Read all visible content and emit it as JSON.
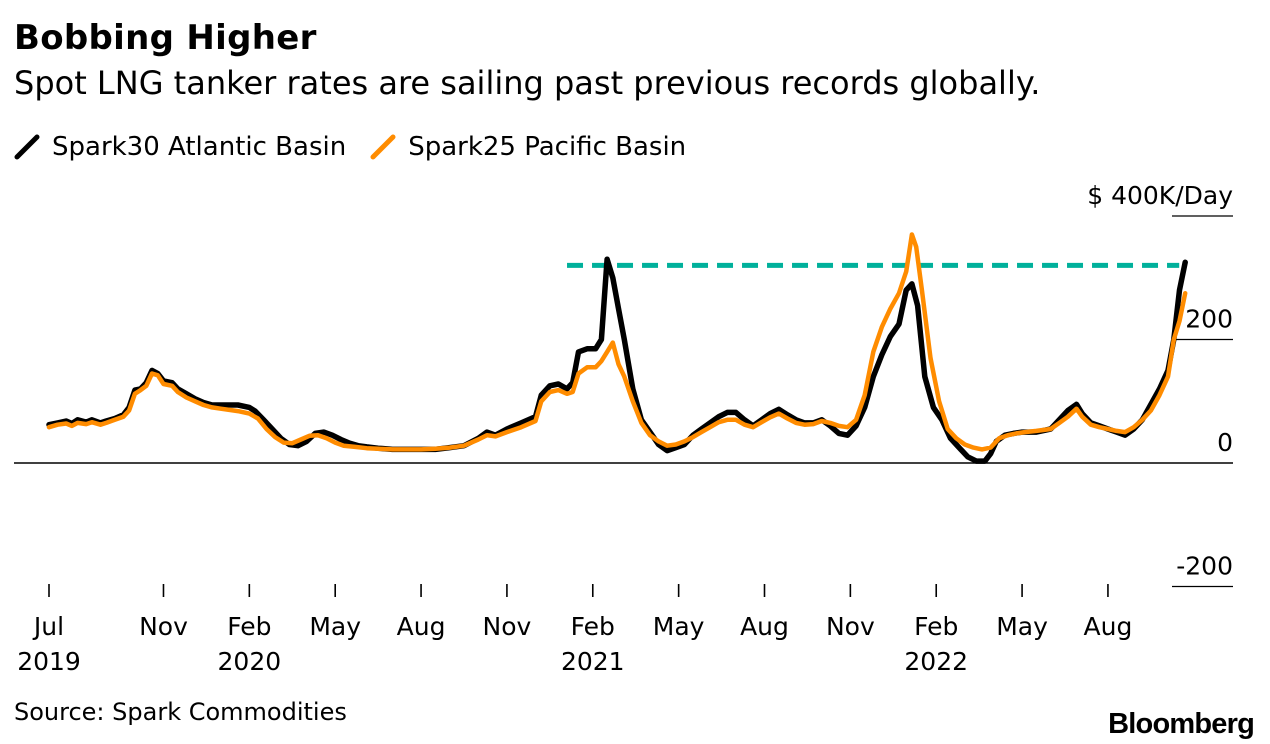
{
  "title": "Bobbing Higher",
  "subtitle": "Spot LNG tanker rates are sailing past previous records globally.",
  "legend": [
    {
      "name": "Spark30 Atlantic Basin",
      "color": "#000000",
      "icon": "line-slash-icon"
    },
    {
      "name": "Spark25 Pacific Basin",
      "color": "#ff8c00",
      "icon": "line-slash-icon"
    }
  ],
  "source": "Source: Spark Commodities",
  "brand": "Bloomberg",
  "colors": {
    "atlantic": "#000000",
    "pacific": "#ff8c00",
    "record": "#00b09b",
    "axis": "#000000"
  },
  "chart_data": {
    "type": "line",
    "title": "Bobbing Higher",
    "ylabel": "$ 400K/Day",
    "ylim": [
      -200,
      400
    ],
    "yticks": [
      {
        "value": 400,
        "label": "$ 400K/Day"
      },
      {
        "value": 200,
        "label": "200"
      },
      {
        "value": 0,
        "label": "0"
      },
      {
        "value": -200,
        "label": "-200"
      }
    ],
    "xlim": [
      0,
      39.8
    ],
    "xticks": [
      {
        "month": 0,
        "label": "Jul",
        "year": "2019"
      },
      {
        "month": 4,
        "label": "Nov",
        "year": ""
      },
      {
        "month": 7,
        "label": "Feb",
        "year": "2020"
      },
      {
        "month": 10,
        "label": "May",
        "year": ""
      },
      {
        "month": 13,
        "label": "Aug",
        "year": ""
      },
      {
        "month": 16,
        "label": "Nov",
        "year": ""
      },
      {
        "month": 19,
        "label": "Feb",
        "year": "2021"
      },
      {
        "month": 22,
        "label": "May",
        "year": ""
      },
      {
        "month": 25,
        "label": "Aug",
        "year": ""
      },
      {
        "month": 28,
        "label": "Nov",
        "year": ""
      },
      {
        "month": 31,
        "label": "Feb",
        "year": "2022"
      },
      {
        "month": 34,
        "label": "May",
        "year": ""
      },
      {
        "month": 37,
        "label": "Aug",
        "year": ""
      }
    ],
    "x_unit": "months since Jul 2019",
    "y_unit": "$K/Day",
    "record_line": {
      "value": 320,
      "x_start": 18.1,
      "x_end": 39.7
    },
    "series": [
      {
        "name": "Spark30 Atlantic Basin",
        "color": "#000000",
        "points": [
          [
            0,
            62
          ],
          [
            0.3,
            65
          ],
          [
            0.6,
            68
          ],
          [
            0.8,
            64
          ],
          [
            1,
            70
          ],
          [
            1.3,
            66
          ],
          [
            1.5,
            70
          ],
          [
            1.8,
            65
          ],
          [
            2,
            68
          ],
          [
            2.3,
            72
          ],
          [
            2.6,
            78
          ],
          [
            2.8,
            90
          ],
          [
            3.0,
            118
          ],
          [
            3.2,
            120
          ],
          [
            3.4,
            130
          ],
          [
            3.6,
            150
          ],
          [
            3.8,
            145
          ],
          [
            4.0,
            133
          ],
          [
            4.3,
            130
          ],
          [
            4.5,
            120
          ],
          [
            4.8,
            112
          ],
          [
            5.1,
            104
          ],
          [
            5.4,
            98
          ],
          [
            5.7,
            94
          ],
          [
            6.0,
            94
          ],
          [
            6.3,
            94
          ],
          [
            6.6,
            94
          ],
          [
            7.0,
            90
          ],
          [
            7.2,
            84
          ],
          [
            7.5,
            70
          ],
          [
            7.8,
            55
          ],
          [
            8.1,
            40
          ],
          [
            8.4,
            30
          ],
          [
            8.7,
            28
          ],
          [
            9.0,
            35
          ],
          [
            9.3,
            48
          ],
          [
            9.6,
            50
          ],
          [
            9.9,
            45
          ],
          [
            10.2,
            38
          ],
          [
            10.5,
            32
          ],
          [
            10.8,
            28
          ],
          [
            11.1,
            26
          ],
          [
            11.5,
            24
          ],
          [
            12,
            22
          ],
          [
            12.5,
            22
          ],
          [
            13,
            22
          ],
          [
            13.5,
            22
          ],
          [
            14,
            25
          ],
          [
            14.5,
            28
          ],
          [
            15,
            40
          ],
          [
            15.3,
            50
          ],
          [
            15.6,
            45
          ],
          [
            16,
            55
          ],
          [
            16.5,
            65
          ],
          [
            17,
            75
          ],
          [
            17.2,
            110
          ],
          [
            17.5,
            125
          ],
          [
            17.8,
            128
          ],
          [
            18.1,
            120
          ],
          [
            18.3,
            130
          ],
          [
            18.5,
            180
          ],
          [
            18.8,
            185
          ],
          [
            19.1,
            185
          ],
          [
            19.3,
            200
          ],
          [
            19.5,
            330
          ],
          [
            19.7,
            300
          ],
          [
            19.9,
            250
          ],
          [
            20.1,
            200
          ],
          [
            20.4,
            120
          ],
          [
            20.7,
            70
          ],
          [
            21.0,
            50
          ],
          [
            21.3,
            30
          ],
          [
            21.6,
            20
          ],
          [
            21.9,
            25
          ],
          [
            22.2,
            30
          ],
          [
            22.5,
            45
          ],
          [
            22.8,
            55
          ],
          [
            23.1,
            65
          ],
          [
            23.4,
            75
          ],
          [
            23.7,
            82
          ],
          [
            24.0,
            82
          ],
          [
            24.3,
            70
          ],
          [
            24.6,
            60
          ],
          [
            24.9,
            70
          ],
          [
            25.2,
            80
          ],
          [
            25.5,
            87
          ],
          [
            25.8,
            78
          ],
          [
            26.1,
            70
          ],
          [
            26.4,
            65
          ],
          [
            26.7,
            65
          ],
          [
            27.0,
            70
          ],
          [
            27.3,
            60
          ],
          [
            27.6,
            48
          ],
          [
            27.9,
            45
          ],
          [
            28.2,
            60
          ],
          [
            28.5,
            90
          ],
          [
            28.8,
            140
          ],
          [
            29.1,
            175
          ],
          [
            29.4,
            205
          ],
          [
            29.7,
            225
          ],
          [
            29.95,
            280
          ],
          [
            30.15,
            290
          ],
          [
            30.35,
            255
          ],
          [
            30.6,
            140
          ],
          [
            30.9,
            90
          ],
          [
            31.2,
            70
          ],
          [
            31.5,
            40
          ],
          [
            31.8,
            25
          ],
          [
            32.1,
            10
          ],
          [
            32.4,
            3
          ],
          [
            32.7,
            3
          ],
          [
            32.9,
            15
          ],
          [
            33.1,
            35
          ],
          [
            33.4,
            45
          ],
          [
            33.7,
            48
          ],
          [
            34.0,
            50
          ],
          [
            34.5,
            50
          ],
          [
            35.0,
            55
          ],
          [
            35.3,
            70
          ],
          [
            35.6,
            85
          ],
          [
            35.9,
            95
          ],
          [
            36.1,
            80
          ],
          [
            36.4,
            65
          ],
          [
            36.7,
            60
          ],
          [
            37.0,
            55
          ],
          [
            37.3,
            50
          ],
          [
            37.6,
            45
          ],
          [
            37.9,
            55
          ],
          [
            38.2,
            70
          ],
          [
            38.5,
            95
          ],
          [
            38.8,
            120
          ],
          [
            39.1,
            150
          ],
          [
            39.3,
            200
          ],
          [
            39.5,
            280
          ],
          [
            39.7,
            325
          ]
        ]
      },
      {
        "name": "Spark25 Pacific Basin",
        "color": "#ff8c00",
        "points": [
          [
            0,
            58
          ],
          [
            0.3,
            62
          ],
          [
            0.6,
            64
          ],
          [
            0.8,
            60
          ],
          [
            1,
            65
          ],
          [
            1.3,
            63
          ],
          [
            1.5,
            66
          ],
          [
            1.8,
            62
          ],
          [
            2,
            65
          ],
          [
            2.3,
            70
          ],
          [
            2.6,
            75
          ],
          [
            2.8,
            85
          ],
          [
            3.0,
            112
          ],
          [
            3.2,
            118
          ],
          [
            3.4,
            125
          ],
          [
            3.6,
            145
          ],
          [
            3.8,
            142
          ],
          [
            4.0,
            128
          ],
          [
            4.3,
            125
          ],
          [
            4.5,
            115
          ],
          [
            4.8,
            106
          ],
          [
            5.1,
            100
          ],
          [
            5.4,
            94
          ],
          [
            5.7,
            90
          ],
          [
            6.0,
            88
          ],
          [
            6.3,
            86
          ],
          [
            6.6,
            84
          ],
          [
            7.0,
            80
          ],
          [
            7.3,
            72
          ],
          [
            7.6,
            55
          ],
          [
            7.9,
            42
          ],
          [
            8.2,
            33
          ],
          [
            8.5,
            32
          ],
          [
            8.8,
            38
          ],
          [
            9.1,
            44
          ],
          [
            9.4,
            45
          ],
          [
            9.7,
            40
          ],
          [
            10.0,
            33
          ],
          [
            10.3,
            28
          ],
          [
            10.7,
            26
          ],
          [
            11.1,
            24
          ],
          [
            11.5,
            23
          ],
          [
            12,
            22
          ],
          [
            12.5,
            22
          ],
          [
            13,
            22
          ],
          [
            13.5,
            23
          ],
          [
            14,
            25
          ],
          [
            14.5,
            28
          ],
          [
            15,
            38
          ],
          [
            15.3,
            45
          ],
          [
            15.6,
            43
          ],
          [
            16,
            50
          ],
          [
            16.5,
            58
          ],
          [
            17,
            68
          ],
          [
            17.2,
            100
          ],
          [
            17.5,
            115
          ],
          [
            17.8,
            118
          ],
          [
            18.1,
            112
          ],
          [
            18.3,
            115
          ],
          [
            18.5,
            145
          ],
          [
            18.8,
            155
          ],
          [
            19.1,
            155
          ],
          [
            19.3,
            165
          ],
          [
            19.5,
            180
          ],
          [
            19.7,
            195
          ],
          [
            19.9,
            160
          ],
          [
            20.1,
            140
          ],
          [
            20.4,
            100
          ],
          [
            20.7,
            65
          ],
          [
            21.0,
            45
          ],
          [
            21.3,
            35
          ],
          [
            21.6,
            28
          ],
          [
            21.9,
            30
          ],
          [
            22.2,
            35
          ],
          [
            22.5,
            42
          ],
          [
            22.8,
            50
          ],
          [
            23.1,
            58
          ],
          [
            23.4,
            66
          ],
          [
            23.7,
            70
          ],
          [
            24.0,
            70
          ],
          [
            24.3,
            62
          ],
          [
            24.6,
            58
          ],
          [
            24.9,
            66
          ],
          [
            25.2,
            74
          ],
          [
            25.5,
            80
          ],
          [
            25.8,
            72
          ],
          [
            26.1,
            65
          ],
          [
            26.4,
            62
          ],
          [
            26.7,
            63
          ],
          [
            27.0,
            68
          ],
          [
            27.3,
            65
          ],
          [
            27.6,
            60
          ],
          [
            27.9,
            58
          ],
          [
            28.2,
            70
          ],
          [
            28.5,
            110
          ],
          [
            28.8,
            180
          ],
          [
            29.1,
            220
          ],
          [
            29.4,
            250
          ],
          [
            29.7,
            275
          ],
          [
            29.95,
            310
          ],
          [
            30.15,
            370
          ],
          [
            30.3,
            350
          ],
          [
            30.5,
            280
          ],
          [
            30.8,
            170
          ],
          [
            31.1,
            100
          ],
          [
            31.4,
            55
          ],
          [
            31.7,
            40
          ],
          [
            32.0,
            30
          ],
          [
            32.3,
            25
          ],
          [
            32.6,
            22
          ],
          [
            32.9,
            25
          ],
          [
            33.2,
            40
          ],
          [
            33.5,
            45
          ],
          [
            33.8,
            48
          ],
          [
            34.1,
            50
          ],
          [
            34.5,
            52
          ],
          [
            35.0,
            55
          ],
          [
            35.3,
            65
          ],
          [
            35.6,
            75
          ],
          [
            35.9,
            88
          ],
          [
            36.1,
            75
          ],
          [
            36.4,
            62
          ],
          [
            36.7,
            58
          ],
          [
            37.0,
            55
          ],
          [
            37.3,
            52
          ],
          [
            37.6,
            50
          ],
          [
            37.9,
            58
          ],
          [
            38.2,
            70
          ],
          [
            38.5,
            85
          ],
          [
            38.8,
            110
          ],
          [
            39.1,
            140
          ],
          [
            39.3,
            200
          ],
          [
            39.5,
            230
          ],
          [
            39.7,
            275
          ]
        ]
      }
    ]
  }
}
